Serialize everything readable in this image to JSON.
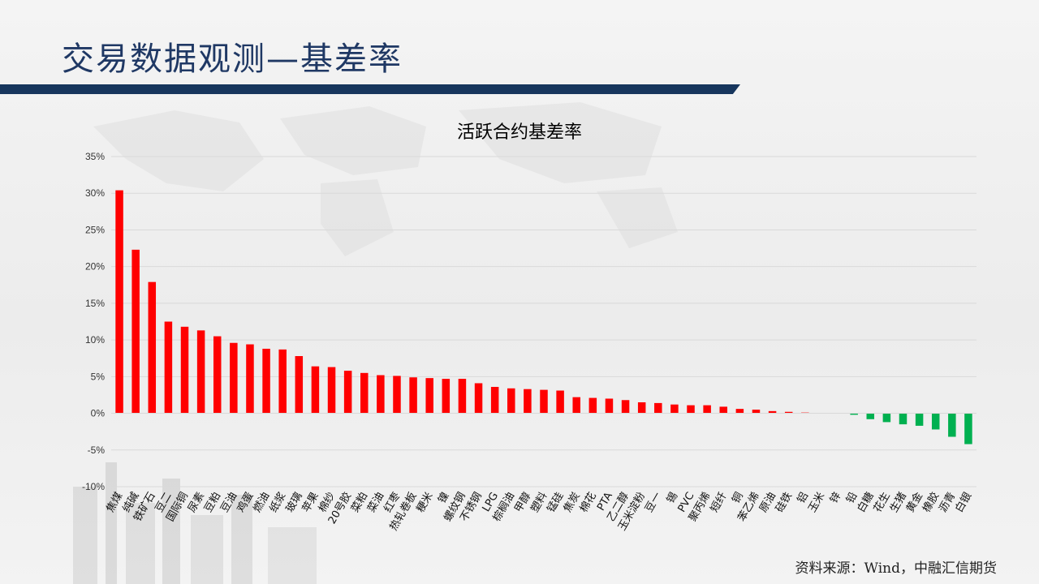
{
  "slide": {
    "title": "交易数据观测—基差率",
    "source": "资料来源：Wind，中融汇信期货"
  },
  "colors": {
    "positive": "#ff0000",
    "negative": "#00b050",
    "title": "#1f3864",
    "bar": "#17365d"
  },
  "chart_data": {
    "type": "bar",
    "title": "活跃合约基差率",
    "xlabel": "",
    "ylabel": "",
    "ylim": [
      -10,
      35
    ],
    "yticks": [
      -10,
      -5,
      0,
      5,
      10,
      15,
      20,
      25,
      30,
      35
    ],
    "ytick_labels": [
      "-10%",
      "-5%",
      "0%",
      "5%",
      "10%",
      "15%",
      "20%",
      "25%",
      "30%",
      "35%"
    ],
    "grid": true,
    "categories": [
      "焦煤",
      "纯碱",
      "铁矿石",
      "豆二",
      "国际铜",
      "尿素",
      "豆粕",
      "豆油",
      "鸡蛋",
      "燃油",
      "纸浆",
      "玻璃",
      "苹果",
      "棉纱",
      "20号胶",
      "菜粕",
      "菜油",
      "红枣",
      "热轧卷板",
      "粳米",
      "镍",
      "螺纹钢",
      "不锈钢",
      "LPG",
      "棕榈油",
      "甲醇",
      "塑料",
      "锰硅",
      "焦炭",
      "棉花",
      "PTA",
      "乙二醇",
      "玉米淀粉",
      "豆一",
      "锡",
      "PVC",
      "聚丙烯",
      "短纤",
      "铜",
      "苯乙烯",
      "原油",
      "硅铁",
      "铝",
      "玉米",
      "锌",
      "铅",
      "白糖",
      "花生",
      "生猪",
      "黄金",
      "橡胶",
      "沥青",
      "白银"
    ],
    "values": [
      30.4,
      22.3,
      17.9,
      12.5,
      11.8,
      11.3,
      10.5,
      9.6,
      9.4,
      8.8,
      8.7,
      7.8,
      6.4,
      6.3,
      5.8,
      5.5,
      5.2,
      5.1,
      4.9,
      4.8,
      4.7,
      4.7,
      4.1,
      3.6,
      3.4,
      3.3,
      3.2,
      3.1,
      2.2,
      2.1,
      2.0,
      1.8,
      1.5,
      1.4,
      1.2,
      1.1,
      1.1,
      0.9,
      0.6,
      0.5,
      0.3,
      0.2,
      0.1,
      0.0,
      0.0,
      -0.2,
      -0.8,
      -1.2,
      -1.5,
      -1.7,
      -2.2,
      -3.2,
      -4.2
    ]
  }
}
